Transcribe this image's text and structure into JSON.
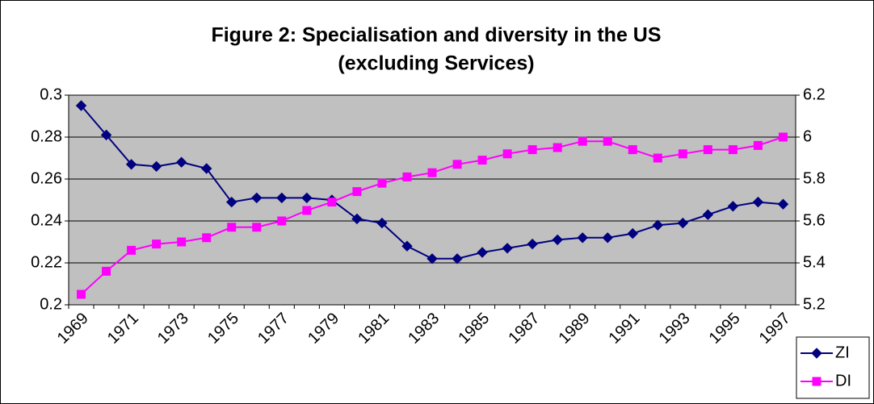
{
  "chart_data": {
    "type": "line",
    "title": [
      "Figure 2: Specialisation and diversity in the US",
      "(excluding Services)"
    ],
    "categories": [
      "1969",
      null,
      "1971",
      null,
      "1973",
      null,
      "1975",
      null,
      "1977",
      null,
      "1979",
      null,
      "1981",
      null,
      "1983",
      null,
      "1985",
      null,
      "1987",
      null,
      "1989",
      null,
      "1991",
      null,
      "1993",
      null,
      "1995",
      null,
      "1997"
    ],
    "series": [
      {
        "name": "ZI",
        "color": "#000080",
        "marker": "diamond",
        "values": [
          0.295,
          0.281,
          0.267,
          0.266,
          0.268,
          0.265,
          0.249,
          0.251,
          0.251,
          0.251,
          0.25,
          0.241,
          0.239,
          0.228,
          0.222,
          0.222,
          0.225,
          0.227,
          0.229,
          0.231,
          0.232,
          0.232,
          0.234,
          0.238,
          0.239,
          0.243,
          0.247,
          0.249,
          0.248
        ]
      },
      {
        "name": "DI",
        "color": "#ff00ff",
        "marker": "square",
        "axis": "y2",
        "values": [
          5.25,
          5.36,
          5.46,
          5.49,
          5.5,
          5.52,
          5.57,
          5.57,
          5.6,
          5.65,
          5.69,
          5.74,
          5.78,
          5.81,
          5.83,
          5.87,
          5.89,
          5.92,
          5.94,
          5.95,
          5.98,
          5.98,
          5.94,
          5.9,
          5.92,
          5.94,
          5.94,
          5.96,
          6.0
        ]
      }
    ],
    "ylim": [
      0.2,
      0.3
    ],
    "yticks": [
      0.2,
      0.22,
      0.24,
      0.26,
      0.28,
      0.3
    ],
    "y2lim": [
      5.2,
      6.2
    ],
    "y2ticks": [
      5.2,
      5.4,
      5.6,
      5.8,
      6,
      6.2
    ],
    "grid": true,
    "legend": "lower right",
    "plot_background": "#c0c0c0"
  }
}
